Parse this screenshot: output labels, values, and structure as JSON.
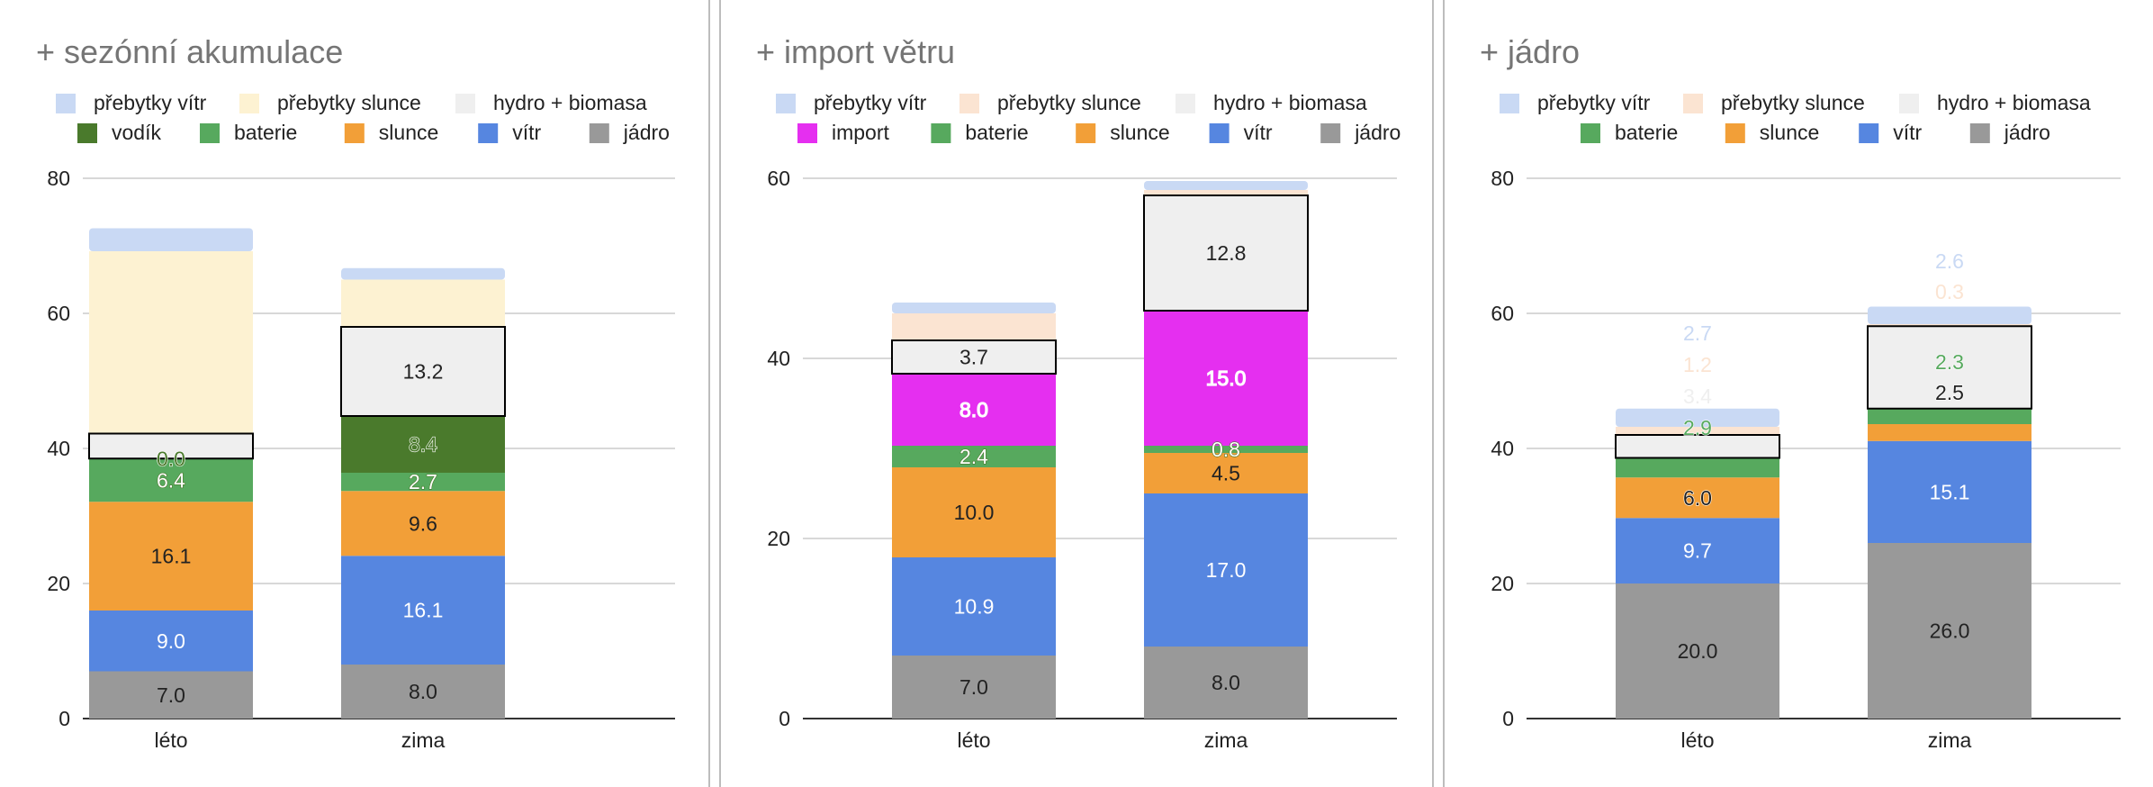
{
  "colors": {
    "prebytky_vitr": "#c9d9f4",
    "prebytky_slunce_1": "#fdf2d2",
    "prebytky_slunce_2": "#fbe4d2",
    "hydro": "#efefef",
    "vodik": "#4a7a2c",
    "import": "#e52ff0",
    "baterie": "#57a95e",
    "slunce": "#f29f38",
    "vitr": "#5686e0",
    "jadro": "#999999"
  },
  "chart_data": [
    {
      "type": "bar",
      "stacked": true,
      "title": "+ sezónní akumulace",
      "categories": [
        "léto",
        "zima"
      ],
      "ylim": [
        0,
        80
      ],
      "yticks": [
        "0",
        "20",
        "40",
        "60",
        "80"
      ],
      "legend": [
        {
          "name": "přebytky vítr",
          "color": "#c9d9f4"
        },
        {
          "name": "přebytky slunce",
          "color": "#fdf2d2"
        },
        {
          "name": "hydro + biomasa",
          "color": "#efefef"
        },
        {
          "name": "vodík",
          "color": "#4a7a2c"
        },
        {
          "name": "baterie",
          "color": "#57a95e"
        },
        {
          "name": "slunce",
          "color": "#f29f38"
        },
        {
          "name": "vítr",
          "color": "#5686e0"
        },
        {
          "name": "jádro",
          "color": "#999999"
        }
      ],
      "series": [
        {
          "name": "jádro",
          "values": [
            7.0,
            8.0
          ],
          "labels": [
            "7.0",
            "8.0"
          ],
          "label_color": "#222222"
        },
        {
          "name": "vítr",
          "values": [
            9.0,
            16.1
          ],
          "labels": [
            "9.0",
            "16.1"
          ],
          "label_color": "#ffffff"
        },
        {
          "name": "slunce",
          "values": [
            16.1,
            9.6
          ],
          "labels": [
            "16.1",
            "9.6"
          ],
          "label_color": "#222222"
        },
        {
          "name": "baterie",
          "values": [
            6.4,
            2.7
          ],
          "labels": [
            "6.4",
            "2.7"
          ],
          "label_color": "#ffffff"
        },
        {
          "name": "vodík",
          "values": [
            0.0,
            8.4
          ],
          "labels": [
            "0.0",
            "8.4"
          ],
          "label_color": "#4a7a2c"
        },
        {
          "name": "hydro + biomasa",
          "values": [
            3.7,
            13.2
          ],
          "labels": [
            "",
            "13.2"
          ],
          "label_color": "#222222"
        },
        {
          "name": "přebytky slunce",
          "values": [
            27.0,
            7.0
          ],
          "labels": [
            "",
            ""
          ],
          "label_color": "#222222"
        },
        {
          "name": "přebytky vítr",
          "values": [
            3.4,
            1.7
          ],
          "labels": [
            "",
            ""
          ],
          "label_color": "#222222"
        }
      ]
    },
    {
      "type": "bar",
      "stacked": true,
      "title": "+ import větru",
      "categories": [
        "léto",
        "zima"
      ],
      "ylim": [
        0,
        60
      ],
      "yticks": [
        "0",
        "20",
        "40",
        "60"
      ],
      "legend": [
        {
          "name": "přebytky vítr",
          "color": "#c9d9f4"
        },
        {
          "name": "přebytky slunce",
          "color": "#fbe4d2"
        },
        {
          "name": "hydro + biomasa",
          "color": "#efefef"
        },
        {
          "name": "import",
          "color": "#e52ff0"
        },
        {
          "name": "baterie",
          "color": "#57a95e"
        },
        {
          "name": "slunce",
          "color": "#f29f38"
        },
        {
          "name": "vítr",
          "color": "#5686e0"
        },
        {
          "name": "jádro",
          "color": "#999999"
        }
      ],
      "series": [
        {
          "name": "jádro",
          "values": [
            7.0,
            8.0
          ],
          "labels": [
            "7.0",
            "8.0"
          ],
          "label_color": "#222222"
        },
        {
          "name": "vítr",
          "values": [
            10.9,
            17.0
          ],
          "labels": [
            "10.9",
            "17.0"
          ],
          "label_color": "#ffffff"
        },
        {
          "name": "slunce",
          "values": [
            10.0,
            4.5
          ],
          "labels": [
            "10.0",
            "4.5"
          ],
          "label_color": "#222222"
        },
        {
          "name": "baterie",
          "values": [
            2.4,
            0.8
          ],
          "labels": [
            "2.4",
            "0.8"
          ],
          "label_color": "#ffffff"
        },
        {
          "name": "import",
          "values": [
            8.0,
            15.0
          ],
          "labels": [
            "8.0",
            "15.0"
          ],
          "label_color": "#ffffff"
        },
        {
          "name": "hydro + biomasa",
          "values": [
            3.7,
            12.8
          ],
          "labels": [
            "3.7",
            "12.8"
          ],
          "label_color": "#222222"
        },
        {
          "name": "přebytky slunce",
          "values": [
            3.0,
            0.6
          ],
          "labels": [
            "",
            ""
          ],
          "label_color": "#222222"
        },
        {
          "name": "přebytky vítr",
          "values": [
            1.2,
            1.0
          ],
          "labels": [
            "",
            ""
          ],
          "label_color": "#222222"
        }
      ]
    },
    {
      "type": "bar",
      "stacked": true,
      "title": "+ jádro",
      "categories": [
        "léto",
        "zima"
      ],
      "ylim": [
        0,
        80
      ],
      "yticks": [
        "0",
        "20",
        "40",
        "60",
        "80"
      ],
      "legend": [
        {
          "name": "přebytky vítr",
          "color": "#c9d9f4"
        },
        {
          "name": "přebytky slunce",
          "color": "#fbe4d2"
        },
        {
          "name": "hydro + biomasa",
          "color": "#efefef"
        },
        {
          "name": "baterie",
          "color": "#57a95e"
        },
        {
          "name": "slunce",
          "color": "#f29f38"
        },
        {
          "name": "vítr",
          "color": "#5686e0"
        },
        {
          "name": "jádro",
          "color": "#999999"
        }
      ],
      "series": [
        {
          "name": "jádro",
          "values": [
            20.0,
            26.0
          ],
          "labels": [
            "20.0",
            "26.0"
          ],
          "label_color": "#222222"
        },
        {
          "name": "vítr",
          "values": [
            9.7,
            15.1
          ],
          "labels": [
            "9.7",
            "15.1"
          ],
          "label_color": "#ffffff"
        },
        {
          "name": "slunce",
          "values": [
            6.0,
            2.5
          ],
          "labels": [
            "6.0",
            "2.5"
          ],
          "label_color": "#222222"
        },
        {
          "name": "baterie",
          "values": [
            2.9,
            2.3
          ],
          "labels": [
            "2.9",
            "2.3"
          ],
          "label_color": "#57a95e"
        },
        {
          "name": "hydro + biomasa",
          "values": [
            3.4,
            12.2
          ],
          "labels": [
            "3.4",
            ""
          ],
          "label_color": "#efefef"
        },
        {
          "name": "přebytky slunce",
          "values": [
            1.2,
            0.3
          ],
          "labels": [
            "1.2",
            "0.3"
          ],
          "label_color": "#fbe4d2"
        },
        {
          "name": "přebytky vítr",
          "values": [
            2.7,
            2.6
          ],
          "labels": [
            "2.7",
            "2.6"
          ],
          "label_color": "#c9d9f4"
        }
      ]
    }
  ]
}
